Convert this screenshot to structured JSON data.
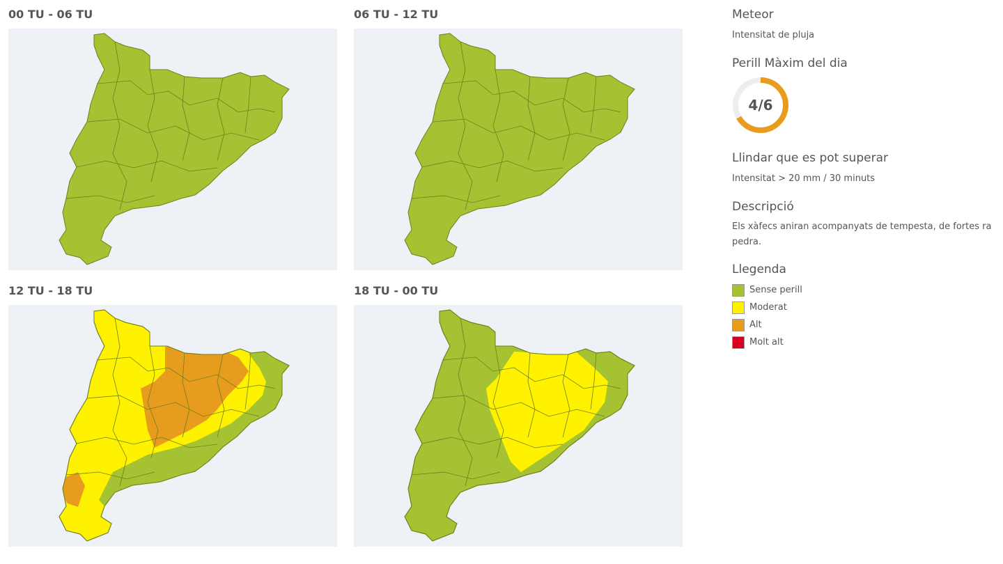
{
  "panels": [
    {
      "title": "00 TU - 06 TU"
    },
    {
      "title": "06 TU - 12 TU"
    },
    {
      "title": "12 TU - 18 TU"
    },
    {
      "title": "18 TU - 00 TU"
    }
  ],
  "sidebar": {
    "meteor_heading": "Meteor",
    "meteor_value": "Intensitat de pluja",
    "max_danger_heading": "Perill Màxim del dia",
    "max_danger": {
      "label": "4/6",
      "level": 4,
      "max": 6
    },
    "threshold_heading": "Llindar que es pot superar",
    "threshold_value": "Intensitat > 20 mm / 30 minuts",
    "description_heading": "Descripció",
    "description_lines": [
      "Els xàfecs aniran acompanyats de tempesta, de fortes ra",
      "pedra."
    ],
    "legend_heading": "Llegenda",
    "legend": [
      {
        "label": "Sense perill",
        "color": "#a4c232"
      },
      {
        "label": "Moderat",
        "color": "#fff200"
      },
      {
        "label": "Alt",
        "color": "#e89c1e"
      },
      {
        "label": "Molt alt",
        "color": "#d7001e"
      }
    ]
  }
}
